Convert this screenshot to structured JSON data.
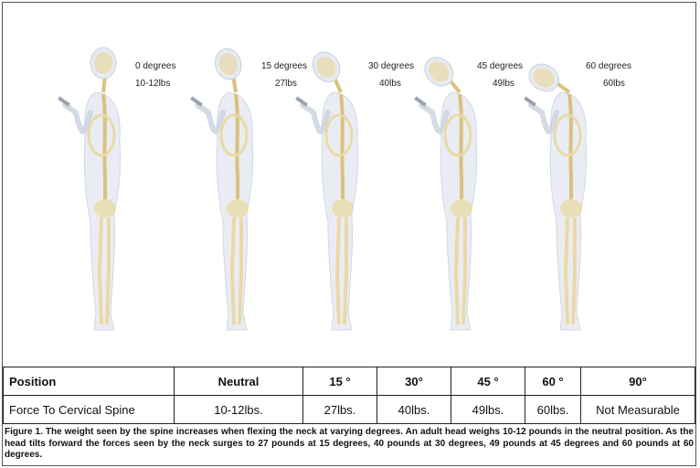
{
  "figures": [
    {
      "angle_label": "0 degrees",
      "weight_label": "10-12lbs",
      "tilt": 0
    },
    {
      "angle_label": "15 degrees",
      "weight_label": "27lbs",
      "tilt": 15
    },
    {
      "angle_label": "30 degrees",
      "weight_label": "40lbs",
      "tilt": 30
    },
    {
      "angle_label": "45 degrees",
      "weight_label": "49lbs",
      "tilt": 45
    },
    {
      "angle_label": "60 degrees",
      "weight_label": "60lbs",
      "tilt": 60
    }
  ],
  "table": {
    "header": [
      "Position",
      "Neutral",
      "15 °",
      "30°",
      "45 °",
      "60 °",
      "90°"
    ],
    "row": [
      "Force To Cervical Spine",
      "10-12lbs.",
      "27lbs.",
      "40lbs.",
      "49lbs.",
      "60lbs.",
      "Not Measurable"
    ]
  },
  "caption": "Figure 1. The weight seen by the spine increases when flexing the neck at varying degrees. An adult head weighs 10-12 pounds in the neutral position. As the head tilts forward the forces seen by the neck surges to 27 pounds at 15 degrees, 40 pounds at 30 degrees, 49 pounds at 45 degrees and 60 pounds at 60 degrees.",
  "colors": {
    "body": "#e6ebf2",
    "outline": "#c9d2de",
    "bone": "#ead9a8",
    "bone_dark": "#d9c27e"
  }
}
